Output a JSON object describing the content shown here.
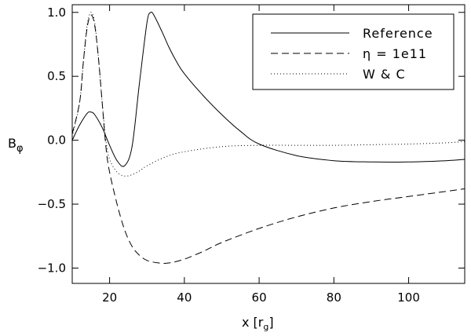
{
  "chart_data": {
    "type": "line",
    "xlabel": "x [r",
    "xlabel_sub": "g",
    "xlabel_close": "]",
    "ylabel": "B",
    "ylabel_sub": "φ",
    "xlim": [
      10,
      115
    ],
    "ylim": [
      -1.12,
      1.06
    ],
    "xticks": [
      20,
      40,
      60,
      80,
      100
    ],
    "xtick_labels": [
      "20",
      "40",
      "60",
      "80",
      "100"
    ],
    "yticks": [
      -1.0,
      -0.5,
      0.0,
      0.5,
      1.0
    ],
    "ytick_labels": [
      "−1.0",
      "−0.5",
      "0.0",
      "0.5",
      "1.0"
    ],
    "grid": false,
    "legend_position": "top-right",
    "series": [
      {
        "name": "Reference",
        "style": "solid",
        "x": [
          10,
          12,
          14,
          15,
          16,
          18,
          20,
          22,
          24,
          26,
          28,
          30,
          31,
          32,
          34,
          36,
          38,
          40,
          45,
          50,
          55,
          60,
          70,
          80,
          90,
          100,
          110,
          115
        ],
        "y": [
          0.0,
          0.12,
          0.21,
          0.22,
          0.2,
          0.1,
          -0.04,
          -0.16,
          -0.2,
          -0.05,
          0.45,
          0.92,
          1.0,
          0.97,
          0.85,
          0.72,
          0.61,
          0.52,
          0.35,
          0.2,
          0.07,
          -0.03,
          -0.12,
          -0.16,
          -0.17,
          -0.17,
          -0.16,
          -0.15
        ]
      },
      {
        "name": "η = 1e11",
        "style": "dashed",
        "x": [
          10,
          12,
          13,
          14,
          15,
          16,
          17,
          18,
          19,
          20,
          22,
          24,
          26,
          28,
          30,
          33,
          36,
          40,
          45,
          50,
          60,
          70,
          80,
          90,
          100,
          110,
          115
        ],
        "y": [
          0.05,
          0.3,
          0.62,
          0.88,
          0.98,
          0.9,
          0.65,
          0.3,
          -0.05,
          -0.25,
          -0.5,
          -0.7,
          -0.83,
          -0.9,
          -0.94,
          -0.96,
          -0.96,
          -0.93,
          -0.87,
          -0.8,
          -0.69,
          -0.6,
          -0.53,
          -0.48,
          -0.44,
          -0.4,
          -0.38
        ]
      },
      {
        "name": "W & C",
        "style": "dotted",
        "x": [
          10,
          12,
          13,
          14,
          15,
          16,
          17,
          18,
          19,
          20,
          22,
          24,
          26,
          28,
          30,
          35,
          40,
          50,
          60,
          70,
          80,
          90,
          100,
          110,
          115
        ],
        "y": [
          0.03,
          0.3,
          0.62,
          0.9,
          1.0,
          0.92,
          0.65,
          0.3,
          0.0,
          -0.15,
          -0.25,
          -0.28,
          -0.27,
          -0.24,
          -0.2,
          -0.13,
          -0.09,
          -0.05,
          -0.04,
          -0.04,
          -0.04,
          -0.035,
          -0.03,
          -0.02,
          -0.01
        ]
      }
    ]
  }
}
